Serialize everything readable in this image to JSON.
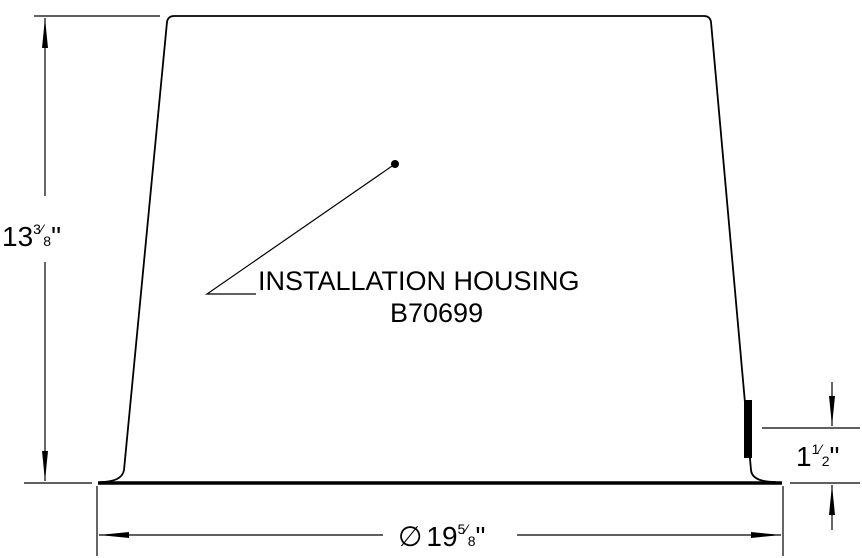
{
  "diagram": {
    "part_label": "INSTALLATION HOUSING",
    "part_number": "B70699",
    "height_dimension": {
      "whole": "13",
      "numerator": "3",
      "denominator": "8",
      "unit": "\""
    },
    "flange_dimension": {
      "whole": "1",
      "numerator": "1",
      "denominator": "2",
      "unit": "\""
    },
    "diameter_dimension": {
      "symbol": "∅",
      "whole": "19",
      "numerator": "5",
      "denominator": "8",
      "unit": "\""
    }
  }
}
